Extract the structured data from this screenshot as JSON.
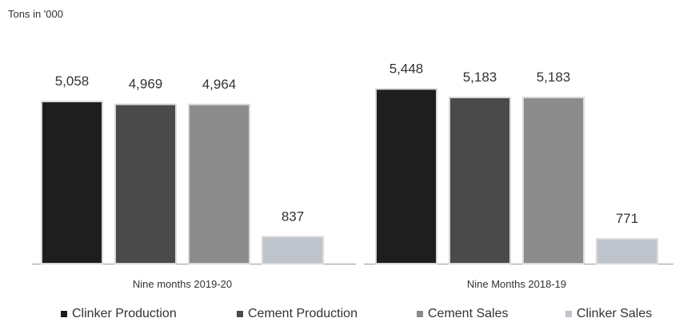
{
  "chart_data": {
    "type": "bar",
    "title": "",
    "unit_label": "Tons in '000",
    "categories": [
      "Nine months 2019-20",
      "Nine Months 2018-19"
    ],
    "series": [
      {
        "name": "Clinker Production",
        "values": [
          5058,
          5448
        ],
        "value_labels": [
          "5,058",
          "5,448"
        ],
        "color": "#1e1e1e"
      },
      {
        "name": "Cement Production",
        "values": [
          4969,
          5183
        ],
        "value_labels": [
          "4,969",
          "5,183"
        ],
        "color": "#4a4a4a"
      },
      {
        "name": "Cement Sales",
        "values": [
          4964,
          5183
        ],
        "value_labels": [
          "4,964",
          "5,183"
        ],
        "color": "#8c8c8c"
      },
      {
        "name": "Clinker Sales",
        "values": [
          837,
          771
        ],
        "value_labels": [
          "837",
          "771"
        ],
        "color": "#bfc4cc"
      }
    ],
    "ylim": [
      0,
      6000
    ],
    "grid": false,
    "legend_position": "bottom"
  }
}
